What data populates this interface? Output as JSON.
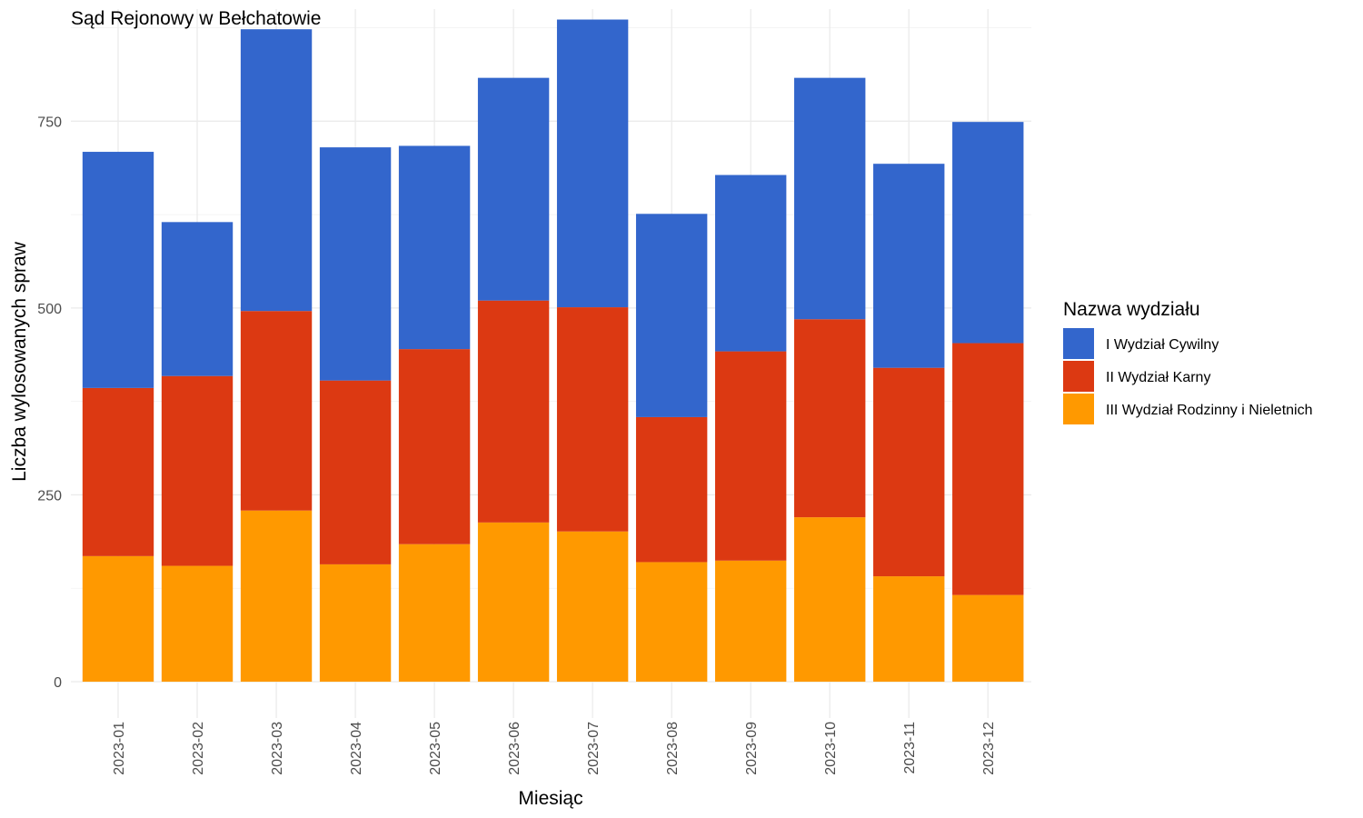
{
  "chart_data": {
    "type": "bar",
    "stacked": true,
    "title": "Sąd Rejonowy w Bełchatowie",
    "xlabel": "Miesiąc",
    "ylabel": "Liczba wylosowanych spraw",
    "ylim": [
      0,
      900
    ],
    "yticks": [
      0,
      250,
      500,
      750
    ],
    "grid": true,
    "legend": {
      "title": "Nazwa wydziału",
      "position": "right"
    },
    "categories": [
      "2023-01",
      "2023-02",
      "2023-03",
      "2023-04",
      "2023-05",
      "2023-06",
      "2023-07",
      "2023-08",
      "2023-09",
      "2023-10",
      "2023-11",
      "2023-12"
    ],
    "series": [
      {
        "name": "III Wydział Rodzinny i Nieletnich",
        "color": "#FF9900",
        "values": [
          168,
          155,
          229,
          157,
          184,
          213,
          201,
          160,
          162,
          220,
          141,
          116
        ]
      },
      {
        "name": "II Wydział Karny",
        "color": "#DC3912",
        "values": [
          225,
          254,
          267,
          246,
          261,
          297,
          300,
          194,
          280,
          265,
          279,
          337
        ]
      },
      {
        "name": "I Wydział Cywilny",
        "color": "#3366CC",
        "values": [
          316,
          206,
          377,
          312,
          272,
          298,
          385,
          272,
          236,
          323,
          273,
          296
        ]
      }
    ]
  }
}
